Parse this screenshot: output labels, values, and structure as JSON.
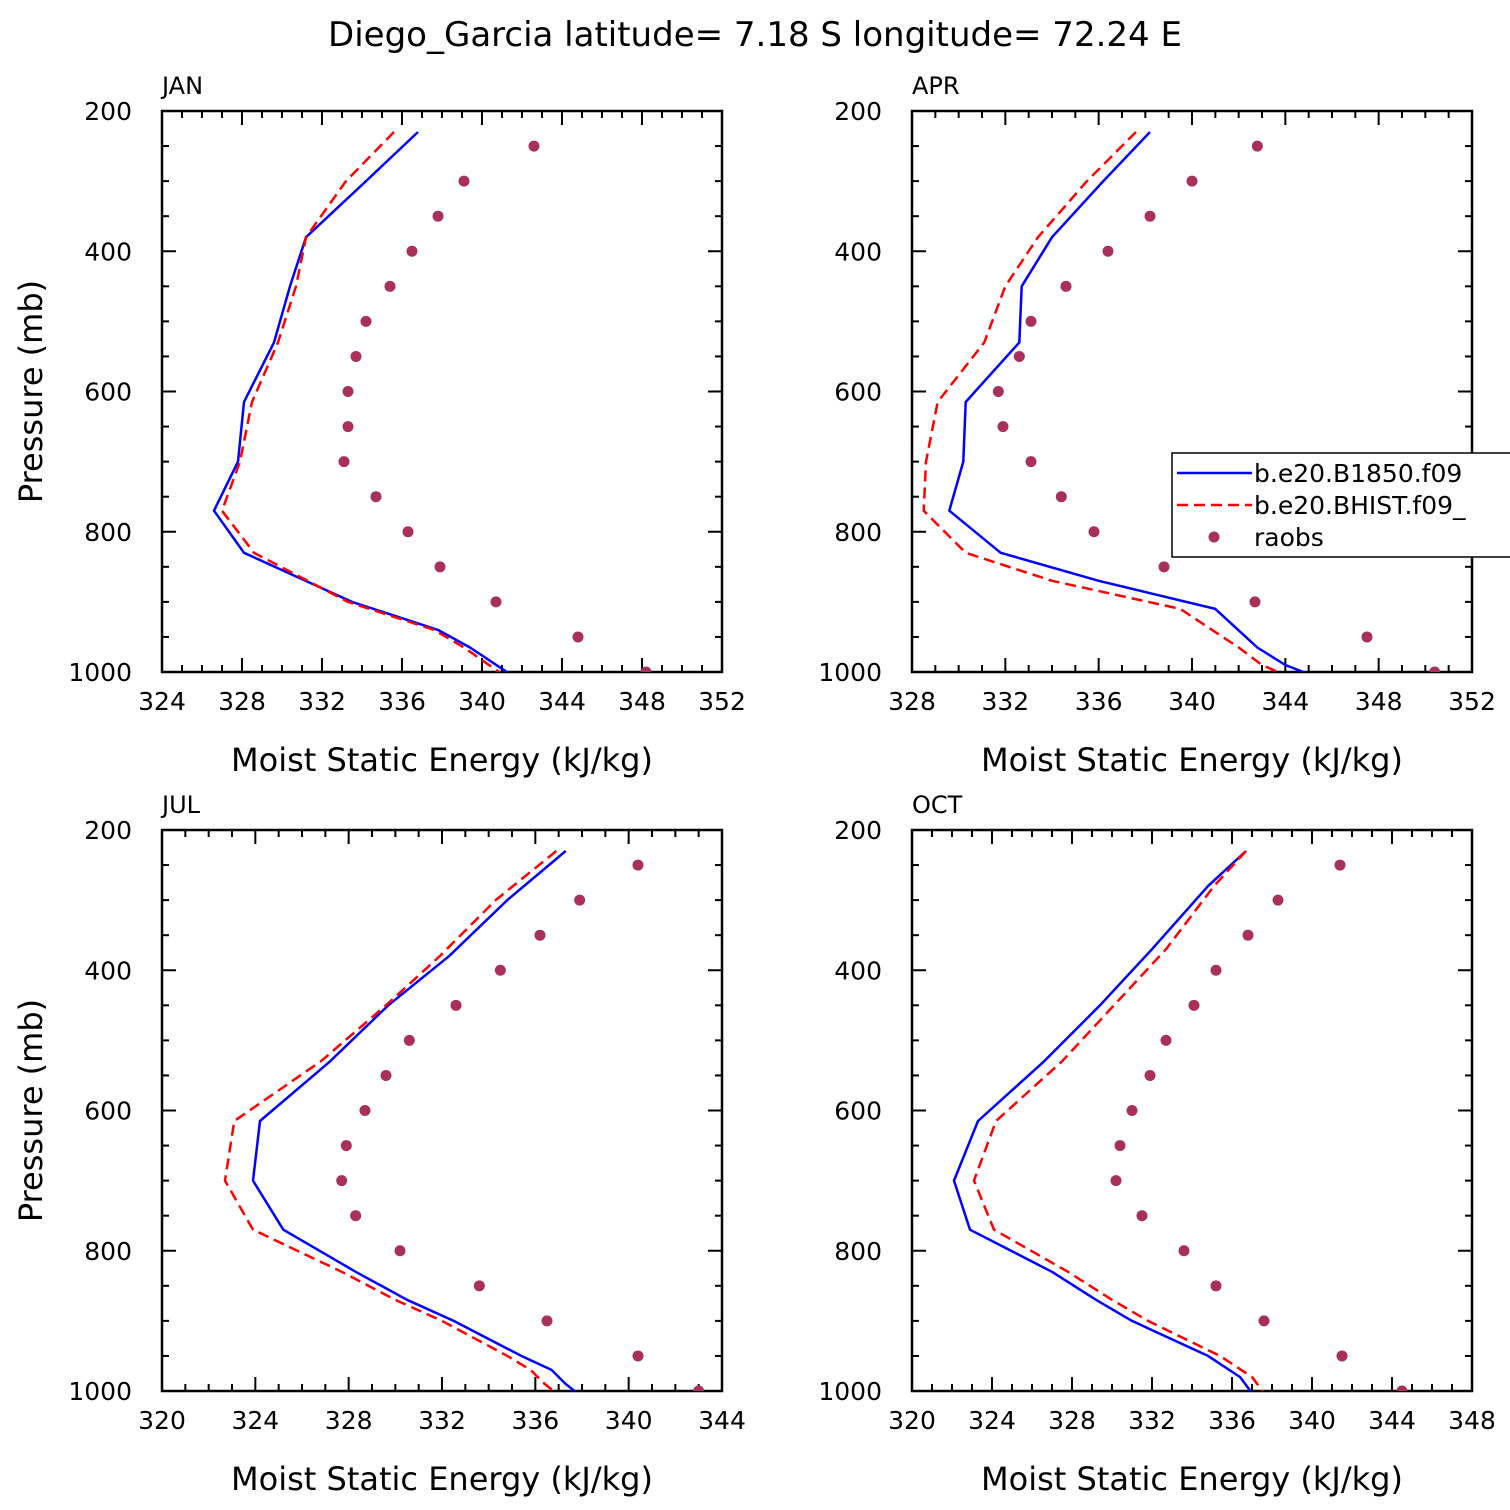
{
  "title": "Diego_Garcia  latitude= 7.18 S longitude= 72.24 E",
  "colors": {
    "model1": "#0000ff",
    "model2": "#ff0000",
    "raobs": "#a8305a"
  },
  "legend": {
    "entries": [
      {
        "label": "b.e20.B1850.f09",
        "style": "solid",
        "color": "#0000ff"
      },
      {
        "label": "b.e20.BHIST.f09_",
        "style": "dashed",
        "color": "#ff0000"
      },
      {
        "label": "raobs",
        "style": "dot",
        "color": "#a8305a"
      }
    ]
  },
  "chart_data": [
    {
      "type": "line",
      "panel": "JAN",
      "xlabel": "Moist Static Energy (kJ/kg)",
      "ylabel": "Pressure (mb)",
      "xlim": [
        324,
        352
      ],
      "xticks": [
        324,
        328,
        332,
        336,
        340,
        344,
        348,
        352
      ],
      "ylim": [
        1000,
        200
      ],
      "yticks": [
        200,
        400,
        600,
        800,
        1000
      ],
      "series": [
        {
          "name": "b.e20.B1850.f09",
          "style": "solid",
          "x": [
            336.8,
            334.2,
            331.2,
            330.4,
            329.6,
            328.1,
            327.8,
            326.6,
            328.1,
            333.5,
            337.8,
            339.4,
            341.4
          ],
          "y": [
            230,
            300,
            380,
            450,
            530,
            615,
            700,
            770,
            830,
            900,
            940,
            965,
            1003
          ]
        },
        {
          "name": "b.e20.BHIST.f09_",
          "style": "dashed",
          "x": [
            335.6,
            333.2,
            331.2,
            330.7,
            329.8,
            328.5,
            327.9,
            327.0,
            328.6,
            333.3,
            337.6,
            339.1,
            341.0
          ],
          "y": [
            230,
            300,
            380,
            450,
            530,
            615,
            700,
            770,
            830,
            900,
            940,
            965,
            1003
          ]
        },
        {
          "name": "raobs",
          "style": "dots",
          "x": [
            342.6,
            339.1,
            337.8,
            336.5,
            335.4,
            334.2,
            333.7,
            333.3,
            333.3,
            333.1,
            334.7,
            336.3,
            337.9,
            340.7,
            344.8,
            348.2
          ],
          "y": [
            250,
            300,
            350,
            400,
            450,
            500,
            550,
            600,
            650,
            700,
            750,
            800,
            850,
            900,
            950,
            1000
          ]
        }
      ]
    },
    {
      "type": "line",
      "panel": "APR",
      "xlabel": "Moist Static Energy (kJ/kg)",
      "ylabel": "",
      "xlim": [
        328,
        352
      ],
      "xticks": [
        328,
        332,
        336,
        340,
        344,
        348,
        352
      ],
      "ylim": [
        1000,
        200
      ],
      "yticks": [
        200,
        400,
        600,
        800,
        1000
      ],
      "series": [
        {
          "name": "b.e20.B1850.f09",
          "style": "solid",
          "x": [
            338.2,
            336.2,
            334.0,
            332.7,
            332.6,
            330.3,
            330.2,
            329.6,
            331.8,
            336.0,
            341.0,
            342.8,
            344.0,
            345.0
          ],
          "y": [
            230,
            300,
            380,
            450,
            530,
            615,
            700,
            770,
            830,
            870,
            910,
            965,
            990,
            1003
          ]
        },
        {
          "name": "b.e20.BHIST.f09_",
          "style": "dashed",
          "x": [
            337.6,
            335.5,
            333.4,
            332.0,
            331.1,
            329.1,
            328.6,
            328.5,
            330.3,
            334.0,
            339.5,
            342.0,
            343.0,
            343.9
          ],
          "y": [
            230,
            300,
            380,
            450,
            530,
            615,
            700,
            770,
            830,
            870,
            910,
            965,
            990,
            1003
          ]
        },
        {
          "name": "raobs",
          "style": "dots",
          "x": [
            342.8,
            340.0,
            338.2,
            336.4,
            334.6,
            333.1,
            332.6,
            331.7,
            331.9,
            333.1,
            334.4,
            335.8,
            338.8,
            342.7,
            347.5,
            350.4
          ],
          "y": [
            250,
            300,
            350,
            400,
            450,
            500,
            550,
            600,
            650,
            700,
            750,
            800,
            850,
            900,
            950,
            1000
          ]
        }
      ]
    },
    {
      "type": "line",
      "panel": "JUL",
      "xlabel": "Moist Static Energy (kJ/kg)",
      "ylabel": "Pressure (mb)",
      "xlim": [
        320,
        344
      ],
      "xticks": [
        320,
        324,
        328,
        332,
        336,
        340,
        344
      ],
      "ylim": [
        1000,
        200
      ],
      "yticks": [
        200,
        400,
        600,
        800,
        1000
      ],
      "series": [
        {
          "name": "b.e20.B1850.f09",
          "style": "solid",
          "x": [
            337.3,
            334.8,
            332.3,
            329.7,
            327.2,
            324.2,
            323.9,
            325.2,
            328.3,
            330.5,
            332.5,
            335.4,
            336.7,
            337.3,
            337.8
          ],
          "y": [
            230,
            300,
            380,
            450,
            530,
            615,
            700,
            770,
            830,
            870,
            900,
            950,
            970,
            990,
            1003
          ]
        },
        {
          "name": "b.e20.BHIST.f09_",
          "style": "dashed",
          "x": [
            336.9,
            334.3,
            331.9,
            329.6,
            326.8,
            323.1,
            322.7,
            323.9,
            327.7,
            330.0,
            332.0,
            334.8,
            335.8,
            336.4,
            336.9
          ],
          "y": [
            230,
            300,
            380,
            450,
            530,
            615,
            700,
            770,
            830,
            870,
            900,
            950,
            970,
            990,
            1003
          ]
        },
        {
          "name": "raobs",
          "style": "dots",
          "x": [
            340.4,
            337.9,
            336.2,
            334.5,
            332.6,
            330.6,
            329.6,
            328.7,
            327.9,
            327.7,
            328.3,
            330.2,
            333.6,
            336.5,
            340.4,
            343.0
          ],
          "y": [
            250,
            300,
            350,
            400,
            450,
            500,
            550,
            600,
            650,
            700,
            750,
            800,
            850,
            900,
            950,
            1000
          ]
        }
      ]
    },
    {
      "type": "line",
      "panel": "OCT",
      "xlabel": "Moist Static Energy (kJ/kg)",
      "ylabel": "",
      "xlim": [
        320,
        348
      ],
      "xticks": [
        320,
        324,
        328,
        332,
        336,
        340,
        344,
        348
      ],
      "ylim": [
        1000,
        200
      ],
      "yticks": [
        200,
        400,
        600,
        800,
        1000
      ],
      "series": [
        {
          "name": "b.e20.B1850.f09",
          "style": "solid",
          "x": [
            336.7,
            334.8,
            332.0,
            329.4,
            326.6,
            323.3,
            322.1,
            322.9,
            327.0,
            329.2,
            331.0,
            334.8,
            336.4,
            337.0
          ],
          "y": [
            230,
            280,
            370,
            450,
            530,
            615,
            700,
            770,
            830,
            870,
            900,
            950,
            980,
            1003
          ]
        },
        {
          "name": "b.e20.BHIST.f09_",
          "style": "dashed",
          "x": [
            336.7,
            335.1,
            332.7,
            330.1,
            327.5,
            324.2,
            323.1,
            324.1,
            327.8,
            330.0,
            331.8,
            335.4,
            337.0,
            337.6
          ],
          "y": [
            230,
            280,
            370,
            450,
            530,
            615,
            700,
            770,
            830,
            870,
            900,
            950,
            980,
            1003
          ]
        },
        {
          "name": "raobs",
          "style": "dots",
          "x": [
            341.4,
            338.3,
            336.8,
            335.2,
            334.1,
            332.7,
            331.9,
            331.0,
            330.4,
            330.2,
            331.5,
            333.6,
            335.2,
            337.6,
            341.5,
            344.5
          ],
          "y": [
            250,
            300,
            350,
            400,
            450,
            500,
            550,
            600,
            650,
            700,
            750,
            800,
            850,
            900,
            950,
            1000
          ]
        }
      ]
    }
  ]
}
